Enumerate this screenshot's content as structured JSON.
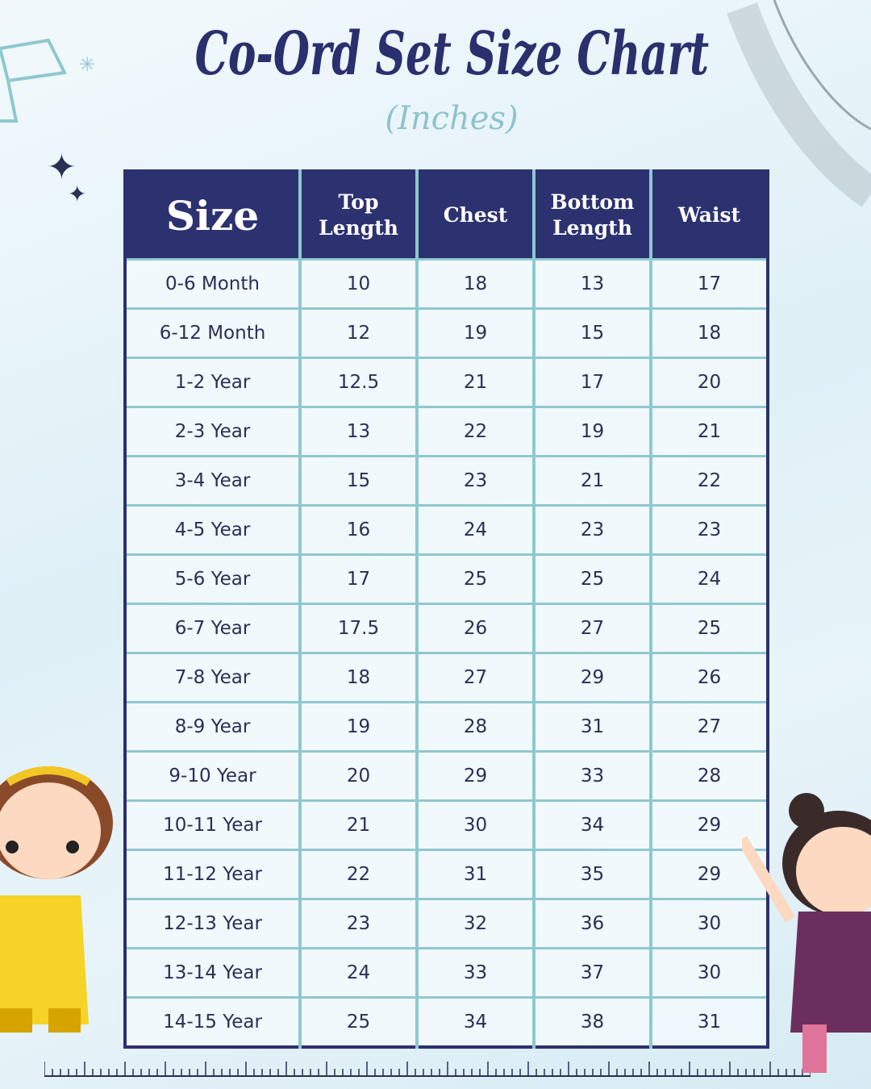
{
  "title": "Co-Ord Set Size Chart",
  "subtitle": "(Inches)",
  "table": {
    "headers": [
      "Size",
      "Top Length",
      "Chest",
      "Bottom Length",
      "Waist"
    ],
    "rows": [
      [
        "0-6 Month",
        "10",
        "18",
        "13",
        "17"
      ],
      [
        "6-12 Month",
        "12",
        "19",
        "15",
        "18"
      ],
      [
        "1-2 Year",
        "12.5",
        "21",
        "17",
        "20"
      ],
      [
        "2-3 Year",
        "13",
        "22",
        "19",
        "21"
      ],
      [
        "3-4 Year",
        "15",
        "23",
        "21",
        "22"
      ],
      [
        "4-5 Year",
        "16",
        "24",
        "23",
        "23"
      ],
      [
        "5-6 Year",
        "17",
        "25",
        "25",
        "24"
      ],
      [
        "6-7 Year",
        "17.5",
        "26",
        "27",
        "25"
      ],
      [
        "7-8 Year",
        "18",
        "27",
        "29",
        "26"
      ],
      [
        "8-9 Year",
        "19",
        "28",
        "31",
        "27"
      ],
      [
        "9-10 Year",
        "20",
        "29",
        "33",
        "28"
      ],
      [
        "10-11 Year",
        "21",
        "30",
        "34",
        "29"
      ],
      [
        "11-12 Year",
        "22",
        "31",
        "35",
        "29"
      ],
      [
        "12-13 Year",
        "23",
        "32",
        "36",
        "30"
      ],
      [
        "13-14 Year",
        "24",
        "33",
        "37",
        "30"
      ],
      [
        "14-15 Year",
        "25",
        "34",
        "38",
        "31"
      ]
    ]
  },
  "colors": {
    "header_bg": "#2c3170",
    "grid": "#8fc8d0",
    "title": "#2a2f6e",
    "subtitle": "#8fc3cc"
  }
}
